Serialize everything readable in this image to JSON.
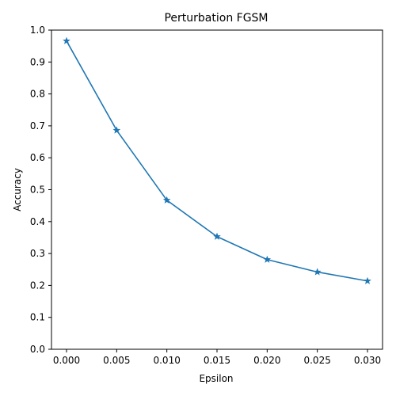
{
  "chart_data": {
    "type": "line",
    "title": "Perturbation FGSM",
    "xlabel": "Epsilon",
    "ylabel": "Accuracy",
    "x": [
      0.0,
      0.005,
      0.01,
      0.015,
      0.02,
      0.025,
      0.03
    ],
    "series": [
      {
        "values": [
          0.966,
          0.686,
          0.467,
          0.353,
          0.281,
          0.242,
          0.214
        ],
        "color": "#1f77b4",
        "marker": "star"
      }
    ],
    "xlim": [
      -0.0015,
      0.0315
    ],
    "ylim": [
      0.0,
      1.0
    ],
    "xticks": [
      0.0,
      0.005,
      0.01,
      0.015,
      0.02,
      0.025,
      0.03
    ],
    "xtick_labels": [
      "0.000",
      "0.005",
      "0.010",
      "0.015",
      "0.020",
      "0.025",
      "0.030"
    ],
    "yticks": [
      0.0,
      0.1,
      0.2,
      0.3,
      0.4,
      0.5,
      0.6,
      0.7,
      0.8,
      0.9,
      1.0
    ],
    "ytick_labels": [
      "0.0",
      "0.1",
      "0.2",
      "0.3",
      "0.4",
      "0.5",
      "0.6",
      "0.7",
      "0.8",
      "0.9",
      "1.0"
    ],
    "grid": false,
    "legend": false
  }
}
